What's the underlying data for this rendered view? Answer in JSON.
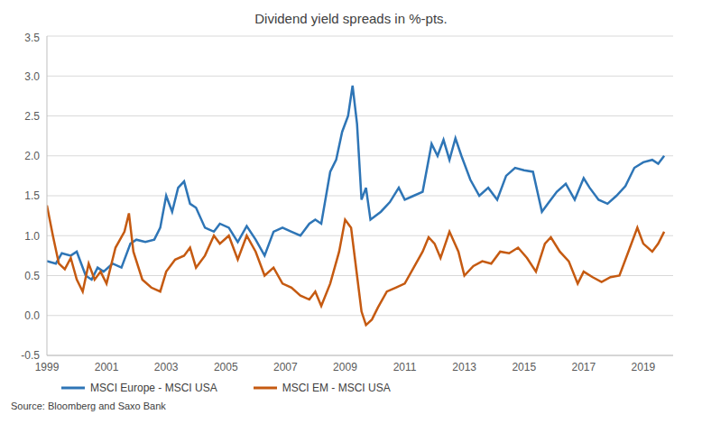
{
  "chart_data": {
    "type": "line",
    "title": "Dividend yield spreads in %-pts.",
    "source": "Source: Bloomberg and Saxo Bank",
    "xlim": [
      1999,
      2020
    ],
    "xticks": [
      1999,
      2001,
      2003,
      2005,
      2007,
      2009,
      2011,
      2013,
      2015,
      2017,
      2019
    ],
    "ylim": [
      -0.5,
      3.5
    ],
    "yticks": [
      -0.5,
      {
        "value": 0,
        "label": "0.0"
      },
      0.5,
      {
        "value": 1,
        "label": "1.0"
      },
      1.5,
      {
        "value": 2,
        "label": "2.0"
      },
      2.5,
      {
        "value": 3,
        "label": "3.0"
      },
      3.5
    ],
    "grid": true,
    "legend": "bottom",
    "series": [
      {
        "name": "MSCI Europe - MSCI USA",
        "color": "#2e75b6",
        "x": [
          1999.0,
          1999.3,
          1999.5,
          1999.8,
          2000.0,
          2000.3,
          2000.5,
          2000.7,
          2000.9,
          2001.2,
          2001.5,
          2001.8,
          2002.0,
          2002.3,
          2002.6,
          2002.8,
          2003.0,
          2003.2,
          2003.4,
          2003.6,
          2003.8,
          2004.0,
          2004.3,
          2004.6,
          2004.8,
          2005.1,
          2005.4,
          2005.7,
          2006.0,
          2006.3,
          2006.6,
          2006.9,
          2007.2,
          2007.5,
          2007.8,
          2008.0,
          2008.2,
          2008.5,
          2008.7,
          2008.9,
          2009.1,
          2009.25,
          2009.4,
          2009.55,
          2009.7,
          2009.85,
          2010.2,
          2010.5,
          2010.8,
          2011.0,
          2011.3,
          2011.6,
          2011.9,
          2012.1,
          2012.3,
          2012.5,
          2012.7,
          2012.9,
          2013.2,
          2013.5,
          2013.8,
          2014.1,
          2014.4,
          2014.7,
          2015.0,
          2015.3,
          2015.6,
          2015.8,
          2016.1,
          2016.4,
          2016.7,
          2017.0,
          2017.2,
          2017.5,
          2017.8,
          2018.1,
          2018.4,
          2018.7,
          2019.0,
          2019.3,
          2019.5,
          2019.7
        ],
        "values": [
          0.68,
          0.65,
          0.78,
          0.75,
          0.8,
          0.5,
          0.45,
          0.6,
          0.55,
          0.65,
          0.6,
          0.9,
          0.95,
          0.92,
          0.95,
          1.1,
          1.5,
          1.3,
          1.6,
          1.68,
          1.4,
          1.35,
          1.1,
          1.05,
          1.15,
          1.1,
          0.92,
          1.12,
          0.95,
          0.75,
          1.05,
          1.1,
          1.05,
          1.0,
          1.15,
          1.2,
          1.15,
          1.8,
          1.95,
          2.3,
          2.5,
          2.88,
          2.4,
          1.45,
          1.6,
          1.2,
          1.3,
          1.42,
          1.6,
          1.45,
          1.5,
          1.55,
          2.15,
          2.0,
          2.2,
          1.95,
          2.22,
          2.0,
          1.7,
          1.5,
          1.6,
          1.45,
          1.75,
          1.85,
          1.82,
          1.8,
          1.3,
          1.4,
          1.55,
          1.65,
          1.45,
          1.72,
          1.6,
          1.45,
          1.4,
          1.5,
          1.62,
          1.85,
          1.92,
          1.95,
          1.9,
          2.0
        ]
      },
      {
        "name": "MSCI EM - MSCI USA",
        "color": "#c55a11",
        "x": [
          1999.0,
          1999.2,
          1999.4,
          1999.6,
          1999.8,
          2000.0,
          2000.2,
          2000.4,
          2000.6,
          2000.8,
          2001.0,
          2001.3,
          2001.6,
          2001.75,
          2001.9,
          2002.2,
          2002.5,
          2002.8,
          2003.0,
          2003.3,
          2003.6,
          2003.8,
          2004.0,
          2004.3,
          2004.6,
          2004.8,
          2005.1,
          2005.4,
          2005.7,
          2006.0,
          2006.3,
          2006.6,
          2006.9,
          2007.2,
          2007.5,
          2007.8,
          2008.0,
          2008.2,
          2008.5,
          2008.8,
          2009.0,
          2009.2,
          2009.4,
          2009.55,
          2009.7,
          2009.9,
          2010.1,
          2010.4,
          2010.7,
          2011.0,
          2011.3,
          2011.6,
          2011.8,
          2012.0,
          2012.2,
          2012.5,
          2012.8,
          2013.0,
          2013.3,
          2013.6,
          2013.9,
          2014.2,
          2014.5,
          2014.8,
          2015.1,
          2015.4,
          2015.7,
          2015.9,
          2016.2,
          2016.5,
          2016.8,
          2017.0,
          2017.3,
          2017.6,
          2017.9,
          2018.2,
          2018.5,
          2018.8,
          2019.0,
          2019.3,
          2019.5,
          2019.7
        ],
        "values": [
          1.38,
          1.0,
          0.65,
          0.58,
          0.72,
          0.45,
          0.3,
          0.65,
          0.45,
          0.55,
          0.4,
          0.85,
          1.05,
          1.28,
          0.8,
          0.45,
          0.35,
          0.3,
          0.55,
          0.7,
          0.75,
          0.85,
          0.6,
          0.75,
          1.0,
          0.9,
          1.0,
          0.7,
          1.0,
          0.8,
          0.5,
          0.6,
          0.4,
          0.35,
          0.25,
          0.2,
          0.3,
          0.12,
          0.4,
          0.8,
          1.2,
          1.1,
          0.5,
          0.05,
          -0.12,
          -0.05,
          0.1,
          0.3,
          0.35,
          0.4,
          0.6,
          0.8,
          0.98,
          0.9,
          0.72,
          1.05,
          0.8,
          0.5,
          0.62,
          0.68,
          0.65,
          0.8,
          0.78,
          0.85,
          0.72,
          0.55,
          0.9,
          0.98,
          0.8,
          0.68,
          0.4,
          0.55,
          0.48,
          0.42,
          0.48,
          0.5,
          0.8,
          1.1,
          0.9,
          0.8,
          0.9,
          1.05
        ]
      }
    ]
  }
}
